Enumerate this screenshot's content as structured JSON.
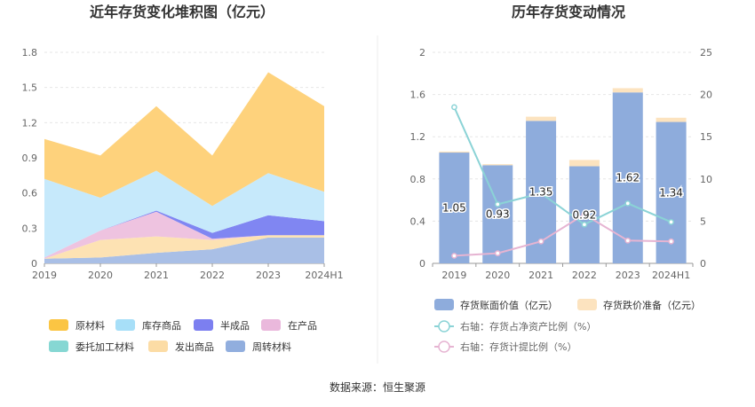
{
  "chart_data": [
    {
      "type": "area",
      "stacked": true,
      "title": "近年存货变化堆积图（亿元）",
      "categories": [
        "2019",
        "2020",
        "2021",
        "2022",
        "2023",
        "2024H1"
      ],
      "y_ticks": [
        "0",
        "0.3",
        "0.6",
        "0.9",
        "1.2",
        "1.5",
        "1.8"
      ],
      "ylim": [
        0,
        1.8
      ],
      "series": [
        {
          "name": "周转材料",
          "color": "#a9bfe6",
          "values": [
            0.04,
            0.05,
            0.09,
            0.12,
            0.22,
            0.22
          ]
        },
        {
          "name": "发出商品",
          "color": "#fde2b3",
          "values": [
            0.0,
            0.15,
            0.14,
            0.08,
            0.02,
            0.02
          ]
        },
        {
          "name": "委托加工材料",
          "color": "#86d7d3",
          "values": [
            0.0,
            0.0,
            0.0,
            0.0,
            0.0,
            0.0
          ]
        },
        {
          "name": "在产品",
          "color": "#eec3e0",
          "values": [
            0.01,
            0.08,
            0.21,
            0.01,
            0.0,
            0.0
          ]
        },
        {
          "name": "半成品",
          "color": "#8086f2",
          "values": [
            0.0,
            0.0,
            0.01,
            0.05,
            0.17,
            0.12
          ]
        },
        {
          "name": "库存商品",
          "color": "#c6e9fb",
          "values": [
            0.67,
            0.28,
            0.34,
            0.23,
            0.36,
            0.25
          ]
        },
        {
          "name": "原材料",
          "color": "#fed27c",
          "values": [
            0.34,
            0.36,
            0.55,
            0.43,
            0.86,
            0.73
          ]
        }
      ],
      "legend": [
        {
          "name": "原材料",
          "color": "#fbc543"
        },
        {
          "name": "库存商品",
          "color": "#a7dff8"
        },
        {
          "name": "半成品",
          "color": "#7c7ff0"
        },
        {
          "name": "在产品",
          "color": "#eab8dc"
        },
        {
          "name": "委托加工材料",
          "color": "#86d7d3"
        },
        {
          "name": "发出商品",
          "color": "#fcdca5"
        },
        {
          "name": "周转材料",
          "color": "#91aede"
        }
      ]
    },
    {
      "type": "bar",
      "stacked": true,
      "title": "历年存货变动情况",
      "categories": [
        "2019",
        "2020",
        "2021",
        "2022",
        "2023",
        "2024H1"
      ],
      "y_ticks": [
        "0",
        "0.4",
        "0.8",
        "1.2",
        "1.6",
        "2"
      ],
      "ylim": [
        0,
        2
      ],
      "y2_ticks": [
        "0",
        "5",
        "10",
        "15",
        "20",
        "25"
      ],
      "y2lim": [
        0,
        25
      ],
      "bar_series": [
        {
          "name": "存货账面价值（亿元）",
          "color": "#8eacdc",
          "values": [
            1.05,
            0.93,
            1.35,
            0.92,
            1.62,
            1.34
          ],
          "labels": [
            "1.05",
            "0.93",
            "1.35",
            "0.92",
            "1.62",
            "1.34"
          ]
        },
        {
          "name": "存货跌价准备（亿元）",
          "color": "#fce3bf",
          "values": [
            0.01,
            0.01,
            0.04,
            0.06,
            0.04,
            0.04
          ]
        }
      ],
      "line_series": [
        {
          "name": "右轴：存货占净资产比例（%）",
          "color": "#8bd3d6",
          "values": [
            18.5,
            7.0,
            8.3,
            4.6,
            7.1,
            4.9
          ]
        },
        {
          "name": "右轴：存货计提比例（%）",
          "color": "#e6b4d2",
          "values": [
            0.9,
            1.2,
            2.6,
            5.8,
            2.7,
            2.6
          ]
        }
      ]
    }
  ],
  "footer": {
    "source": "数据来源：恒生聚源"
  }
}
